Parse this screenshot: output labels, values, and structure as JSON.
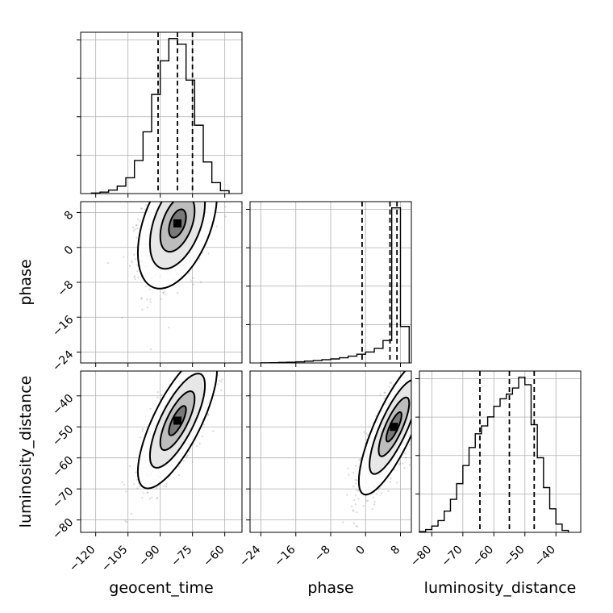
{
  "chart_data": {
    "type": "corner",
    "parameters": [
      "geocent_time",
      "phase",
      "luminosity_distance"
    ],
    "axes": {
      "geocent_time": {
        "lim": [
          -127,
          -52
        ],
        "ticks": [
          -120,
          -105,
          -90,
          -75,
          -60
        ],
        "label": "geocent_time"
      },
      "phase": {
        "lim": [
          -26.5,
          10.5
        ],
        "ticks": [
          -24,
          -16,
          -8,
          0,
          8
        ],
        "label": "phase"
      },
      "luminosity_distance": {
        "lim": [
          -84,
          -32
        ],
        "ticks": [
          -80,
          -70,
          -60,
          -50,
          -40
        ],
        "label": "luminosity_distance"
      }
    },
    "marginals": [
      {
        "parameter": "geocent_time",
        "bins": [
          -122,
          -118,
          -114,
          -110,
          -106,
          -102,
          -98,
          -94,
          -90,
          -86,
          -82,
          -78,
          -74,
          -70,
          -66,
          -62,
          -58
        ],
        "counts": [
          2,
          5,
          12,
          26,
          55,
          115,
          215,
          345,
          462,
          540,
          520,
          395,
          238,
          110,
          38,
          10
        ],
        "quantiles": [
          -91.0,
          -82.0,
          -75.0
        ]
      },
      {
        "parameter": "phase",
        "bins": [
          -24,
          -22,
          -20,
          -18,
          -16,
          -14,
          -12,
          -10,
          -8,
          -6,
          -4,
          -2,
          0,
          2,
          4,
          6,
          8,
          10
        ],
        "counts": [
          1,
          2,
          4,
          6,
          9,
          14,
          19,
          25,
          31,
          40,
          52,
          67,
          84,
          112,
          172,
          1190,
          280
        ],
        "quantiles": [
          -0.8,
          5.6,
          7.2
        ]
      },
      {
        "parameter": "luminosity_distance",
        "bins": [
          -84,
          -82,
          -80,
          -78,
          -76,
          -74,
          -72,
          -70,
          -68,
          -66,
          -64,
          -62,
          -60,
          -58,
          -56,
          -54,
          -52,
          -50,
          -48,
          -46,
          -44,
          -42,
          -40,
          -38,
          -36
        ],
        "counts": [
          4,
          14,
          32,
          60,
          108,
          168,
          248,
          340,
          432,
          502,
          542,
          588,
          642,
          680,
          704,
          735,
          790,
          752,
          548,
          380,
          228,
          120,
          42,
          10
        ],
        "quantiles": [
          -64.5,
          -55.0,
          -47.0
        ]
      }
    ],
    "joint": [
      {
        "x": "geocent_time",
        "y": "phase",
        "mode": [
          -82,
          5.5
        ],
        "sd": [
          8,
          6.5
        ],
        "rho": 0.45
      },
      {
        "x": "geocent_time",
        "y": "luminosity_distance",
        "mode": [
          -82,
          -48
        ],
        "sd": [
          8,
          9.5
        ],
        "rho": 0.75
      },
      {
        "x": "phase",
        "y": "luminosity_distance",
        "mode": [
          6.5,
          -50
        ],
        "sd": [
          3.5,
          9.5
        ],
        "rho": 0.8
      }
    ],
    "grid": true,
    "legend": "none"
  }
}
